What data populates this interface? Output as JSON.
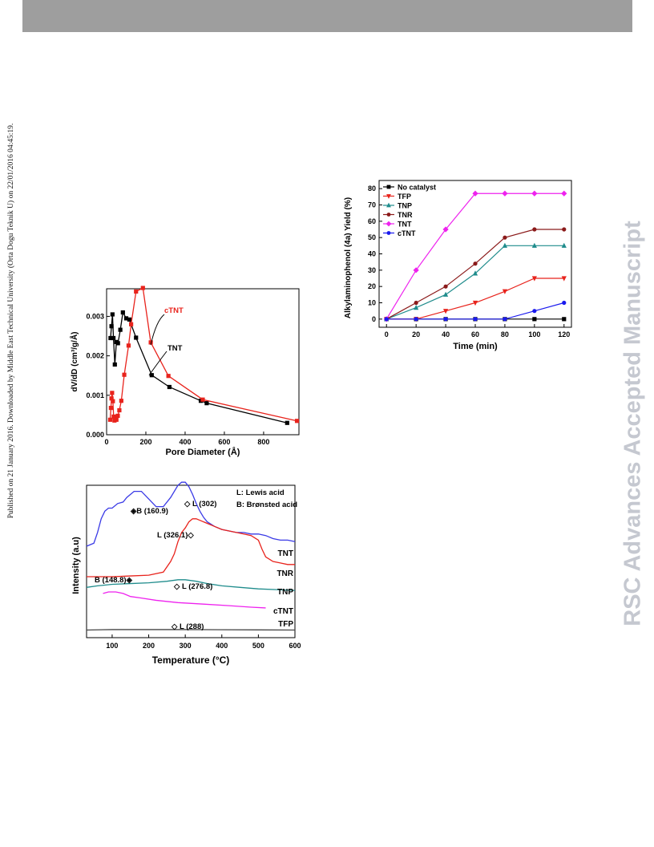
{
  "page": {
    "side_note": "Published on 21 January 2016. Downloaded by Middle East Technical University (Orta Dogu Teknik U) on 22/01/2016 04:45:19.",
    "watermark": "RSC Advances Accepted Manuscript",
    "header_bar_color": "#9e9e9e"
  },
  "chart_data": [
    {
      "type": "line",
      "xlabel": "Pore Diameter (Å)",
      "ylabel": "dV/dD (cm³/g/Å)",
      "xlim": [
        0,
        980
      ],
      "ylim": [
        0,
        0.0037
      ],
      "xticks": [
        0,
        200,
        400,
        600,
        800
      ],
      "xtick_labels": [
        "0",
        "200",
        "400",
        "600",
        "800"
      ],
      "yticks": [
        0.0,
        0.001,
        0.002,
        0.003
      ],
      "ytick_labels": [
        "0.000",
        "0.001",
        "0.002",
        "0.003"
      ],
      "annotations": [
        "cTNT",
        "TNT"
      ],
      "series": [
        {
          "name": "TNT",
          "color": "#000000",
          "marker": "square",
          "x": [
            20,
            25,
            30,
            35,
            42,
            50,
            58,
            70,
            83,
            100,
            116,
            150,
            230,
            320,
            480,
            510,
            920
          ],
          "y": [
            0.00245,
            0.00275,
            0.00305,
            0.00245,
            0.00178,
            0.00235,
            0.00232,
            0.00266,
            0.0031,
            0.00295,
            0.00292,
            0.00246,
            0.00151,
            0.00121,
            0.00086,
            0.0008,
            0.0003
          ]
        },
        {
          "name": "cTNT",
          "color": "#e8231c",
          "marker": "square",
          "x": [
            18,
            22,
            25,
            28,
            32,
            36,
            40,
            45,
            50,
            57,
            65,
            75,
            90,
            112,
            125,
            150,
            185,
            225,
            315,
            490,
            970
          ],
          "y": [
            0.00038,
            0.00068,
            0.00092,
            0.00106,
            0.00085,
            0.00046,
            0.00036,
            0.00044,
            0.00038,
            0.00048,
            0.00062,
            0.00086,
            0.00152,
            0.00226,
            0.0028,
            0.00363,
            0.00372,
            0.00234,
            0.00149,
            0.00089,
            0.00035
          ]
        }
      ]
    },
    {
      "type": "line",
      "xlabel": "Time (min)",
      "ylabel": "Alkylaminophenol (4a) Yield (%)",
      "xlim": [
        -5,
        125
      ],
      "ylim": [
        -5,
        85
      ],
      "xticks": [
        0,
        20,
        40,
        60,
        80,
        100,
        120
      ],
      "xtick_labels": [
        "0",
        "20",
        "40",
        "60",
        "80",
        "100",
        "120"
      ],
      "yticks": [
        0,
        10,
        20,
        30,
        40,
        50,
        60,
        70,
        80
      ],
      "ytick_labels": [
        "0",
        "10",
        "20",
        "30",
        "40",
        "50",
        "60",
        "70",
        "80"
      ],
      "legend": "top-left",
      "x": [
        0,
        20,
        40,
        60,
        80,
        100,
        120
      ],
      "series": [
        {
          "name": "No catalyst",
          "color": "#000000",
          "marker": "square",
          "values": [
            0,
            0,
            0,
            0,
            0,
            0,
            0
          ]
        },
        {
          "name": "TFP",
          "color": "#e8231c",
          "marker": "triangle-down",
          "values": [
            0,
            0,
            5,
            10,
            17,
            25,
            25
          ]
        },
        {
          "name": "TNP",
          "color": "#1f8c8c",
          "marker": "triangle-up",
          "values": [
            0,
            7,
            15,
            28,
            45,
            45,
            45
          ]
        },
        {
          "name": "TNR",
          "color": "#8b1a1a",
          "marker": "circle",
          "values": [
            0,
            10,
            20,
            34,
            50,
            55,
            55
          ]
        },
        {
          "name": "TNT",
          "color": "#ee22ee",
          "marker": "diamond",
          "values": [
            0,
            30,
            55,
            77,
            77,
            77,
            77
          ]
        },
        {
          "name": "cTNT",
          "color": "#1a1aee",
          "marker": "circle",
          "values": [
            0,
            0,
            0,
            0,
            0,
            5,
            10
          ]
        }
      ]
    },
    {
      "type": "line",
      "xlabel": "Temperature (°C)",
      "ylabel": "Intensity (a.u)",
      "xlim": [
        30,
        600
      ],
      "ylim": [
        0,
        100
      ],
      "xticks": [
        100,
        200,
        300,
        400,
        500,
        600
      ],
      "xtick_labels": [
        "100",
        "200",
        "300",
        "400",
        "500",
        "600"
      ],
      "legend_text": [
        "L: Lewis acid",
        "B: Brønsted acid"
      ],
      "annotations": [
        {
          "text": "B (160.9)",
          "symbol": "◈"
        },
        {
          "text": "L (302)",
          "symbol": "◇"
        },
        {
          "text": "L (326.1)",
          "symbol": "◇"
        },
        {
          "text": "B (148.8)",
          "symbol": "◈"
        },
        {
          "text": "L (276.8)",
          "symbol": "◇"
        },
        {
          "text": "L (288)",
          "symbol": "◇"
        }
      ],
      "series": [
        {
          "name": "TNT",
          "color": "#3a3ae6",
          "x": [
            30,
            50,
            60,
            70,
            80,
            90,
            100,
            115,
            130,
            140,
            160,
            180,
            200,
            220,
            240,
            260,
            280,
            290,
            300,
            310,
            320,
            330,
            340,
            350,
            360,
            380,
            400,
            420,
            440,
            460,
            480,
            500,
            520,
            540,
            560,
            580,
            600
          ],
          "y": [
            60,
            62,
            69,
            78,
            83,
            85,
            85,
            88,
            89,
            92,
            96,
            96,
            91,
            86,
            86,
            92,
            100,
            102,
            102,
            99,
            94,
            88,
            83,
            79,
            76,
            73,
            71,
            70,
            69,
            69,
            68,
            68,
            67,
            65,
            64,
            64,
            63
          ]
        },
        {
          "name": "TNR",
          "color": "#e8231c",
          "x": [
            30,
            60,
            100,
            150,
            200,
            240,
            260,
            270,
            280,
            290,
            300,
            310,
            320,
            330,
            340,
            360,
            380,
            400,
            420,
            440,
            460,
            480,
            500,
            510,
            520,
            540,
            560,
            580,
            600
          ],
          "y": [
            40,
            40,
            40,
            40.5,
            41,
            43,
            50,
            55,
            63,
            69,
            72,
            76,
            78,
            78,
            77,
            75,
            73,
            71,
            70,
            69,
            68,
            67,
            64,
            58,
            53,
            50,
            49,
            48,
            48
          ]
        },
        {
          "name": "TNP",
          "color": "#1f8c8c",
          "x": [
            30,
            60,
            100,
            150,
            200,
            250,
            280,
            300,
            330,
            360,
            400,
            450,
            500,
            550,
            600
          ],
          "y": [
            33,
            34,
            35,
            35.5,
            36,
            37,
            38,
            38,
            37,
            35.5,
            34,
            33,
            32,
            31.5,
            31
          ]
        },
        {
          "name": "cTNT",
          "color": "#ee22ee",
          "x": [
            75,
            90,
            110,
            130,
            150,
            180,
            220,
            280,
            350,
            420,
            480,
            520
          ],
          "y": [
            29,
            30,
            30,
            29,
            27,
            26,
            24.5,
            23,
            22,
            21,
            20,
            19.5
          ]
        },
        {
          "name": "TFP",
          "color": "#444444",
          "x": [
            30,
            100,
            200,
            300,
            400,
            500,
            600
          ],
          "y": [
            5,
            5.3,
            5.3,
            5.3,
            5.2,
            5.1,
            5
          ]
        }
      ]
    }
  ]
}
